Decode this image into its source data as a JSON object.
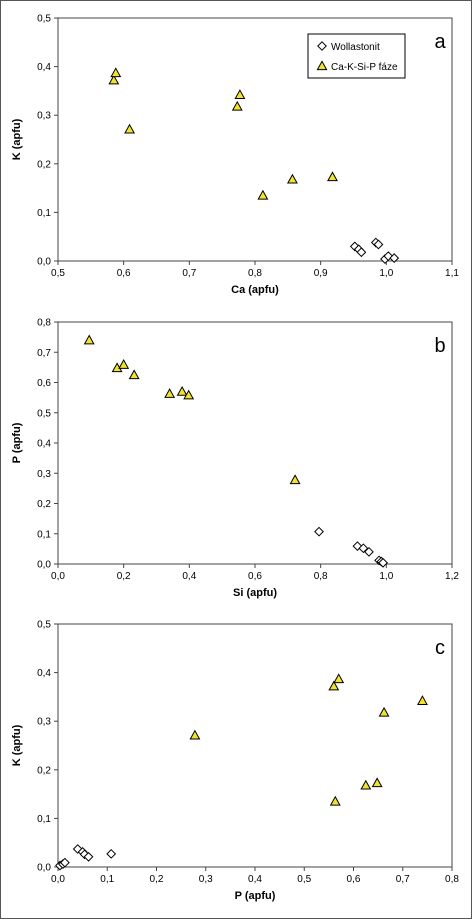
{
  "colors": {
    "wollastonit": "#ffffff",
    "cakspfaze": "#f0e22e",
    "stroke": "#000000",
    "axis": "#444444"
  },
  "legend": {
    "items": [
      {
        "label": "Wollastonit",
        "marker": "diamond"
      },
      {
        "label": "Ca-K-Si-P fáze",
        "marker": "triangle"
      }
    ],
    "placement": "top-right of panel a"
  },
  "chart_data": [
    {
      "type": "scatter",
      "panel": "a",
      "xlabel": "Ca (apfu)",
      "ylabel": "K (apfu)",
      "xlim": [
        0.5,
        1.1
      ],
      "ylim": [
        0,
        0.5
      ],
      "xticks": [
        "0,5",
        "0,6",
        "0,7",
        "0,8",
        "0,9",
        "1,0",
        "1,1"
      ],
      "yticks": [
        "0,0",
        "0,1",
        "0,2",
        "0,3",
        "0,4",
        "0,5"
      ],
      "grid": false,
      "series": [
        {
          "name": "Wollastonit",
          "marker": "diamond",
          "points": [
            [
              0.952,
              0.03
            ],
            [
              0.958,
              0.024
            ],
            [
              0.962,
              0.018
            ],
            [
              0.984,
              0.038
            ],
            [
              0.988,
              0.034
            ],
            [
              0.998,
              0.004
            ],
            [
              1.003,
              0.01
            ],
            [
              1.012,
              0.006
            ]
          ]
        },
        {
          "name": "Ca-K-Si-P fáze",
          "marker": "triangle",
          "points": [
            [
              0.585,
              0.372
            ],
            [
              0.588,
              0.387
            ],
            [
              0.609,
              0.271
            ],
            [
              0.773,
              0.318
            ],
            [
              0.777,
              0.342
            ],
            [
              0.812,
              0.135
            ],
            [
              0.857,
              0.168
            ],
            [
              0.918,
              0.173
            ]
          ]
        }
      ]
    },
    {
      "type": "scatter",
      "panel": "b",
      "xlabel": "Si (apfu)",
      "ylabel": "P (apfu)",
      "xlim": [
        0,
        1.2
      ],
      "ylim": [
        0,
        0.8
      ],
      "xticks": [
        "0,0",
        "0,2",
        "0,4",
        "0,6",
        "0,8",
        "1,0",
        "1,2"
      ],
      "yticks": [
        "0,0",
        "0,1",
        "0,2",
        "0,3",
        "0,4",
        "0,5",
        "0,6",
        "0,7",
        "0,8"
      ],
      "grid": false,
      "series": [
        {
          "name": "Wollastonit",
          "marker": "diamond",
          "points": [
            [
              0.795,
              0.107
            ],
            [
              0.912,
              0.059
            ],
            [
              0.93,
              0.052
            ],
            [
              0.947,
              0.04
            ],
            [
              0.978,
              0.012
            ],
            [
              0.985,
              0.008
            ],
            [
              0.99,
              0.004
            ]
          ]
        },
        {
          "name": "Ca-K-Si-P fáze",
          "marker": "triangle",
          "points": [
            [
              0.095,
              0.74
            ],
            [
              0.18,
              0.648
            ],
            [
              0.2,
              0.659
            ],
            [
              0.232,
              0.625
            ],
            [
              0.34,
              0.563
            ],
            [
              0.378,
              0.57
            ],
            [
              0.398,
              0.558
            ],
            [
              0.722,
              0.278
            ]
          ]
        }
      ]
    },
    {
      "type": "scatter",
      "panel": "c",
      "xlabel": "P (apfu)",
      "ylabel": "K (apfu)",
      "xlim": [
        0,
        0.8
      ],
      "ylim": [
        0,
        0.5
      ],
      "xticks": [
        "0,0",
        "0,1",
        "0,2",
        "0,3",
        "0,4",
        "0,5",
        "0,6",
        "0,7",
        "0,8"
      ],
      "yticks": [
        "0,0",
        "0,1",
        "0,2",
        "0,3",
        "0,4",
        "0,5"
      ],
      "grid": false,
      "series": [
        {
          "name": "Wollastonit",
          "marker": "diamond",
          "points": [
            [
              0.004,
              0.003
            ],
            [
              0.01,
              0.006
            ],
            [
              0.014,
              0.009
            ],
            [
              0.04,
              0.037
            ],
            [
              0.05,
              0.031
            ],
            [
              0.054,
              0.026
            ],
            [
              0.062,
              0.021
            ],
            [
              0.108,
              0.027
            ]
          ]
        },
        {
          "name": "Ca-K-Si-P fáze",
          "marker": "triangle",
          "points": [
            [
              0.278,
              0.271
            ],
            [
              0.56,
              0.372
            ],
            [
              0.563,
              0.135
            ],
            [
              0.57,
              0.387
            ],
            [
              0.625,
              0.168
            ],
            [
              0.648,
              0.173
            ],
            [
              0.662,
              0.318
            ],
            [
              0.74,
              0.342
            ]
          ]
        }
      ]
    }
  ],
  "panels": {
    "a": {
      "label": "a"
    },
    "b": {
      "label": "b"
    },
    "c": {
      "label": "c"
    }
  }
}
